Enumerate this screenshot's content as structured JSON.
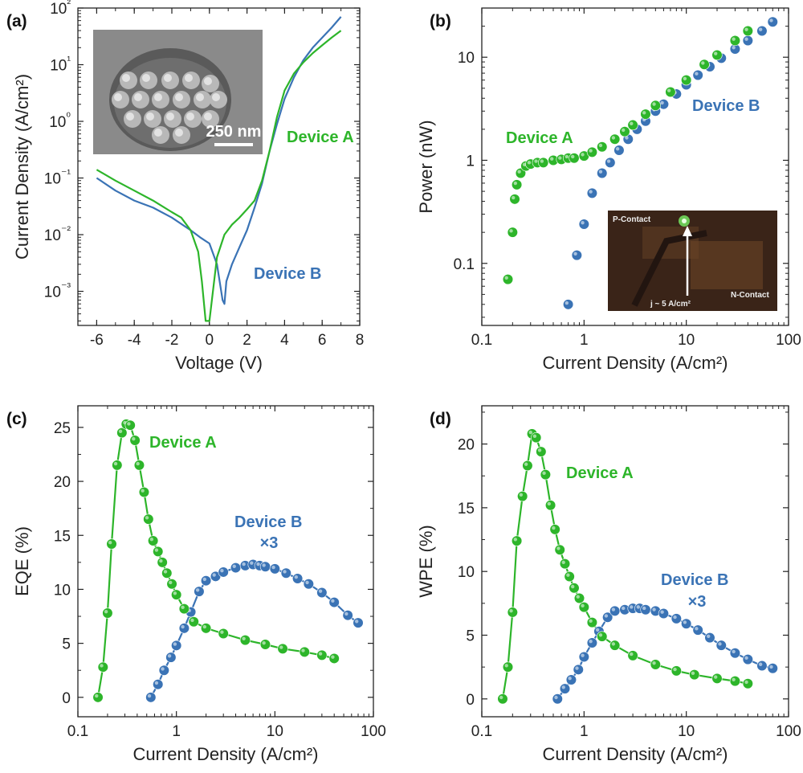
{
  "colors": {
    "device_a": "#2db52a",
    "device_b": "#3a73b5"
  },
  "chart_data": [
    {
      "panel": "(a)",
      "type": "line",
      "xlabel": "Voltage (V)",
      "ylabel": "Current Density (A/cm²)",
      "xlim": [
        -7,
        8
      ],
      "ylim": [
        0.00025,
        100
      ],
      "yscale": "log",
      "xticks": [
        "-6",
        "-4",
        "-2",
        "0",
        "2",
        "4",
        "6",
        "8"
      ],
      "yticks": [
        "10⁻³",
        "10⁻²",
        "10⁻¹",
        "10⁰",
        "10¹",
        "10²"
      ],
      "inset_scalebar": "250 nm",
      "series": [
        {
          "name": "Device A",
          "x": [
            -6,
            -5,
            -4,
            -3,
            -2,
            -1.5,
            -1,
            -0.6,
            -0.4,
            -0.2,
            0,
            0.4,
            0.8,
            1.2,
            1.6,
            2,
            2.4,
            2.8,
            3.2,
            3.6,
            4,
            4.5,
            5,
            5.5,
            6,
            6.5,
            7
          ],
          "y": [
            0.14,
            0.09,
            0.06,
            0.04,
            0.025,
            0.02,
            0.012,
            0.005,
            0.0015,
            0.0003,
            0.0003,
            0.004,
            0.01,
            0.015,
            0.02,
            0.028,
            0.04,
            0.09,
            0.3,
            1.2,
            3.5,
            7,
            11,
            16,
            22,
            30,
            40
          ]
        },
        {
          "name": "Device B",
          "x": [
            -6,
            -5,
            -4,
            -3,
            -2,
            -1,
            -0.5,
            0,
            0.4,
            0.7,
            0.8,
            0.9,
            1.2,
            1.6,
            2,
            2.4,
            2.8,
            3.2,
            3.6,
            4,
            4.5,
            5,
            5.5,
            6,
            6.5,
            7
          ],
          "y": [
            0.1,
            0.06,
            0.04,
            0.03,
            0.02,
            0.012,
            0.009,
            0.007,
            0.003,
            0.0007,
            0.0006,
            0.0015,
            0.003,
            0.006,
            0.012,
            0.03,
            0.08,
            0.3,
            0.9,
            2.5,
            6,
            12,
            20,
            30,
            45,
            70
          ]
        }
      ]
    },
    {
      "panel": "(b)",
      "type": "scatter",
      "xlabel": "Current Density (A/cm²)",
      "ylabel": "Power (nW)",
      "xlim": [
        0.1,
        100
      ],
      "ylim": [
        0.025,
        30
      ],
      "xscale": "log",
      "yscale": "log",
      "xticks": [
        "0.1",
        "1",
        "10",
        "100"
      ],
      "yticks": [
        "0.1",
        "1",
        "10"
      ],
      "inset_labels": {
        "p_contact": "P-Contact",
        "n_contact": "N-Contact",
        "current": "j ~ 5 A/cm²"
      },
      "series": [
        {
          "name": "Device A",
          "x": [
            0.18,
            0.2,
            0.21,
            0.22,
            0.24,
            0.27,
            0.3,
            0.35,
            0.4,
            0.5,
            0.6,
            0.7,
            0.8,
            1,
            1.2,
            1.5,
            2,
            2.5,
            3,
            4,
            5,
            7,
            10,
            15,
            20,
            30,
            40
          ],
          "y": [
            0.07,
            0.2,
            0.42,
            0.58,
            0.75,
            0.88,
            0.92,
            0.95,
            0.95,
            1.0,
            1.02,
            1.05,
            1.05,
            1.1,
            1.2,
            1.35,
            1.6,
            1.9,
            2.2,
            2.8,
            3.4,
            4.6,
            6,
            8.5,
            10.5,
            14.5,
            18
          ]
        },
        {
          "name": "Device B",
          "x": [
            0.7,
            0.85,
            1,
            1.2,
            1.5,
            1.8,
            2.2,
            2.7,
            3.3,
            4,
            5,
            6,
            8,
            10,
            13,
            17,
            22,
            30,
            40,
            55,
            70
          ],
          "y": [
            0.04,
            0.12,
            0.24,
            0.48,
            0.75,
            0.95,
            1.25,
            1.6,
            2,
            2.4,
            3,
            3.5,
            4.4,
            5.4,
            6.7,
            8.1,
            9.8,
            12,
            14.5,
            18,
            22
          ]
        }
      ]
    },
    {
      "panel": "(c)",
      "type": "line",
      "xlabel": "Current Density (A/cm²)",
      "ylabel": "EQE (%)",
      "xlim": [
        0.1,
        100
      ],
      "ylim": [
        -1.8,
        27
      ],
      "xscale": "log",
      "xticks": [
        "0.1",
        "1",
        "10",
        "100"
      ],
      "yticks": [
        "0",
        "5",
        "10",
        "15",
        "20",
        "25"
      ],
      "annotations": [
        "×3"
      ],
      "series": [
        {
          "name": "Device A",
          "x": [
            0.16,
            0.18,
            0.2,
            0.22,
            0.25,
            0.28,
            0.31,
            0.34,
            0.38,
            0.42,
            0.47,
            0.52,
            0.58,
            0.65,
            0.72,
            0.8,
            0.9,
            1,
            1.2,
            1.5,
            2,
            3,
            5,
            8,
            12,
            20,
            30,
            40
          ],
          "y": [
            0,
            2.8,
            7.8,
            14.2,
            21.5,
            24.5,
            25.3,
            25.2,
            23.8,
            21.5,
            19,
            16.5,
            14.5,
            13.5,
            12.5,
            11.5,
            10.5,
            9.5,
            8.2,
            7,
            6.4,
            5.9,
            5.3,
            4.9,
            4.5,
            4.2,
            3.9,
            3.6
          ]
        },
        {
          "name": "Device B",
          "x": [
            0.55,
            0.65,
            0.75,
            0.88,
            1,
            1.2,
            1.4,
            1.7,
            2,
            2.5,
            3,
            4,
            5,
            6,
            7,
            8,
            10,
            13,
            17,
            22,
            30,
            40,
            55,
            70
          ],
          "y": [
            0,
            1.2,
            2.5,
            3.7,
            4.8,
            6.4,
            7.9,
            9.8,
            10.8,
            11.2,
            11.6,
            12.0,
            12.2,
            12.3,
            12.2,
            12.1,
            11.9,
            11.5,
            11,
            10.5,
            9.7,
            8.8,
            7.6,
            6.9
          ]
        }
      ]
    },
    {
      "panel": "(d)",
      "type": "line",
      "xlabel": "Current Density (A/cm²)",
      "ylabel": "WPE (%)",
      "xlim": [
        0.1,
        100
      ],
      "ylim": [
        -1.4,
        23
      ],
      "xscale": "log",
      "xticks": [
        "0.1",
        "1",
        "10",
        "100"
      ],
      "yticks": [
        "0",
        "5",
        "10",
        "15",
        "20"
      ],
      "annotations": [
        "×3"
      ],
      "series": [
        {
          "name": "Device A",
          "x": [
            0.16,
            0.18,
            0.2,
            0.22,
            0.25,
            0.28,
            0.31,
            0.34,
            0.38,
            0.42,
            0.47,
            0.52,
            0.58,
            0.65,
            0.72,
            0.8,
            0.9,
            1,
            1.2,
            1.5,
            2,
            3,
            5,
            8,
            12,
            20,
            30,
            40
          ],
          "y": [
            0,
            2.5,
            6.8,
            12.4,
            15.9,
            18.3,
            20.8,
            20.5,
            19.4,
            17.6,
            15.2,
            13.3,
            11.7,
            10.6,
            9.6,
            8.7,
            7.9,
            7.2,
            6.0,
            4.9,
            4.2,
            3.4,
            2.7,
            2.2,
            1.9,
            1.6,
            1.4,
            1.2
          ]
        },
        {
          "name": "Device B",
          "x": [
            0.55,
            0.65,
            0.75,
            0.88,
            1,
            1.2,
            1.4,
            1.7,
            2,
            2.5,
            3,
            3.5,
            4,
            5,
            6,
            8,
            10,
            13,
            17,
            22,
            30,
            40,
            55,
            70
          ],
          "y": [
            0,
            0.8,
            1.5,
            2.3,
            3.3,
            4.4,
            5.3,
            6.4,
            6.9,
            7.0,
            7.1,
            7.1,
            7.0,
            6.9,
            6.7,
            6.3,
            5.9,
            5.4,
            4.8,
            4.2,
            3.6,
            3.1,
            2.6,
            2.4
          ]
        }
      ]
    }
  ]
}
